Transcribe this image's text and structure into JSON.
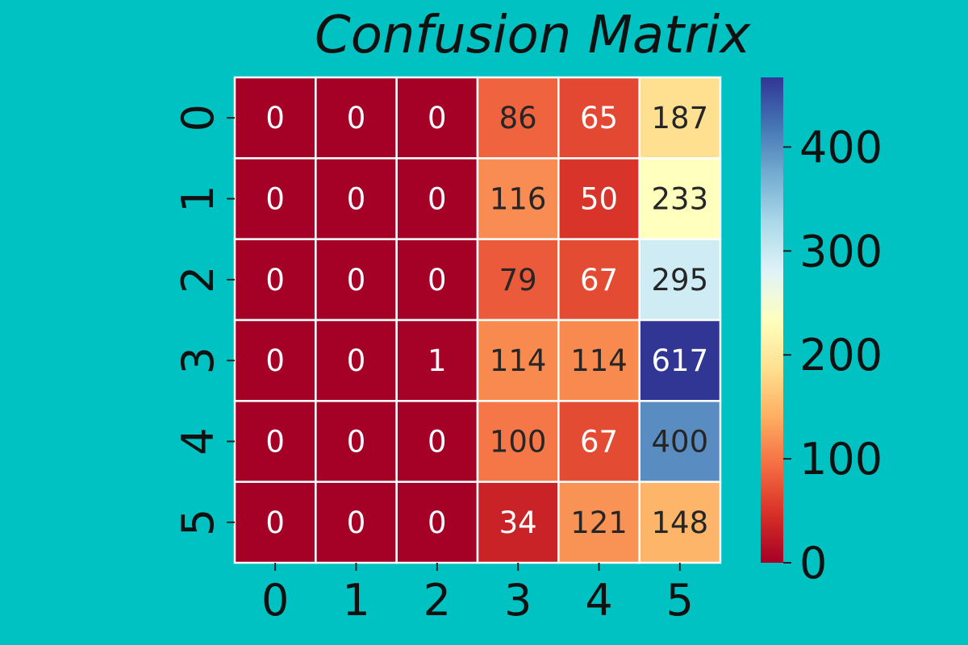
{
  "figure": {
    "background": "#00c2c2"
  },
  "chart_data": {
    "type": "heatmap",
    "title": "Confusion Matrix",
    "xlabel": "",
    "ylabel": "",
    "x_categories": [
      "0",
      "1",
      "2",
      "3",
      "4",
      "5"
    ],
    "y_categories": [
      "0",
      "1",
      "2",
      "3",
      "4",
      "5"
    ],
    "values": [
      [
        0,
        0,
        0,
        86,
        65,
        187
      ],
      [
        0,
        0,
        0,
        116,
        50,
        233
      ],
      [
        0,
        0,
        0,
        79,
        67,
        295
      ],
      [
        0,
        0,
        1,
        114,
        114,
        617
      ],
      [
        0,
        0,
        0,
        100,
        67,
        400
      ],
      [
        0,
        0,
        0,
        34,
        121,
        148
      ]
    ],
    "colormap": "RdYlBu",
    "color_range": [
      0,
      467
    ],
    "colorbar": {
      "ticks": [
        0,
        100,
        200,
        300,
        400
      ],
      "placement": "right"
    },
    "cell_separator_color": "#ffffff",
    "annotation_colors": {
      "light": "#ffffff",
      "dark": "#262626"
    }
  }
}
